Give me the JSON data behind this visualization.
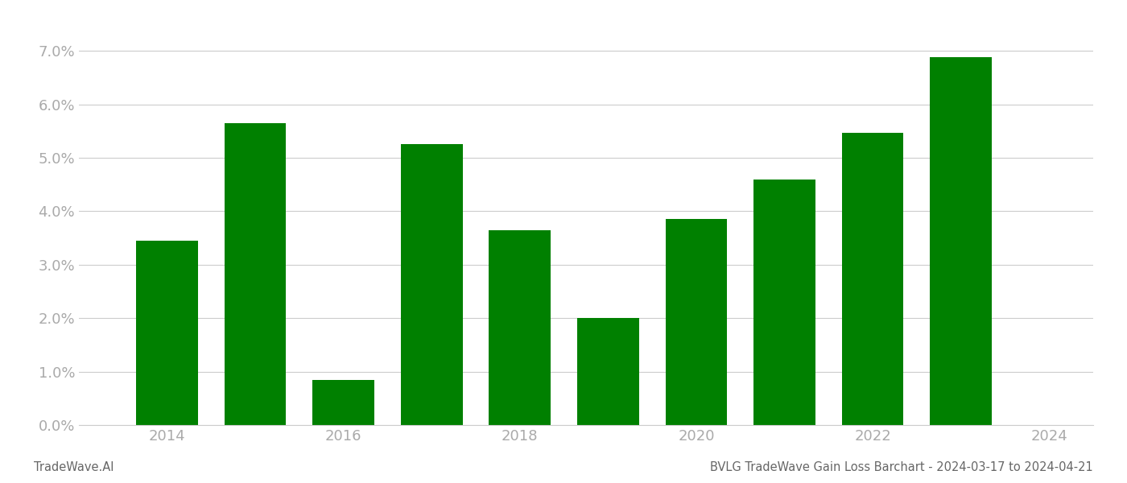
{
  "years": [
    2014,
    2015,
    2016,
    2017,
    2018,
    2019,
    2020,
    2021,
    2022,
    2023
  ],
  "values": [
    0.0345,
    0.0565,
    0.0085,
    0.0525,
    0.0365,
    0.02,
    0.0385,
    0.046,
    0.0547,
    0.0688
  ],
  "bar_color": "#008000",
  "title": "BVLG TradeWave Gain Loss Barchart - 2024-03-17 to 2024-04-21",
  "watermark": "TradeWave.AI",
  "ylim": [
    0,
    0.075
  ],
  "yticks": [
    0.0,
    0.01,
    0.02,
    0.03,
    0.04,
    0.05,
    0.06,
    0.07
  ],
  "xlim": [
    2013.0,
    2024.5
  ],
  "xticks": [
    2014,
    2016,
    2018,
    2020,
    2022,
    2024
  ],
  "background_color": "#ffffff",
  "grid_color": "#cccccc",
  "axis_label_color": "#aaaaaa",
  "title_color": "#666666",
  "watermark_color": "#666666",
  "bar_width": 0.7
}
